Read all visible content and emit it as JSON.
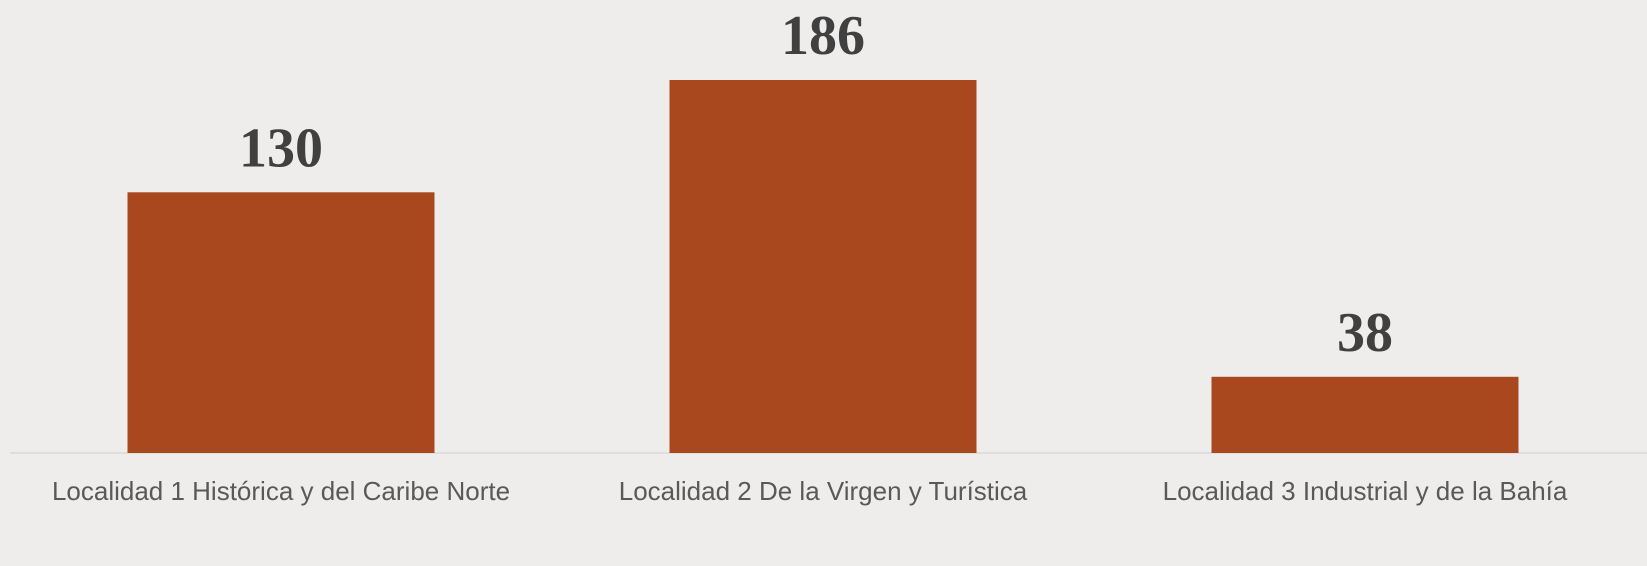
{
  "chart_data": {
    "type": "bar",
    "categories": [
      "Localidad 1 Histórica y del Caribe Norte",
      "Localidad 2 De la Virgen y Turística",
      "Localidad 3 Industrial y de la Bahía"
    ],
    "values": [
      130,
      186,
      38
    ],
    "color": "#a9481f"
  }
}
